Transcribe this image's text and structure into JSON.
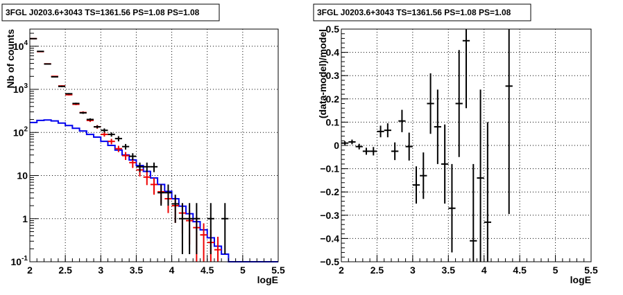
{
  "chart_data": [
    {
      "type": "line",
      "title": "3FGL J0203.6+3043 TS=1361.56 PS=1.08 PS=1.08",
      "xlabel": "logE",
      "ylabel": "Nb of counts",
      "xlim": [
        2,
        5.5
      ],
      "ylim": [
        0.1,
        25000
      ],
      "yscale": "log",
      "grid": true,
      "x_ticks": [
        "2",
        "2.5",
        "3",
        "3.5",
        "4",
        "4.5",
        "5",
        "5.5"
      ],
      "y_ticks": [
        "10^-1",
        "1",
        "10",
        "10^2",
        "10^3",
        "10^4"
      ],
      "colors": {
        "model": "#0000ee",
        "model_points": "#ee0000",
        "data": "#000000"
      },
      "x_bin_edges": [
        2.0,
        2.1,
        2.2,
        2.3,
        2.4,
        2.5,
        2.6,
        2.7,
        2.8,
        2.9,
        3.0,
        3.1,
        3.2,
        3.3,
        3.4,
        3.5,
        3.6,
        3.7,
        3.8,
        3.9,
        4.0,
        4.1,
        4.2,
        4.3,
        4.4,
        4.5,
        4.6,
        4.7,
        4.8,
        5.0,
        5.5
      ],
      "series": [
        {
          "style": "histogram",
          "values": [
            170,
            190,
            195,
            185,
            165,
            145,
            125,
            108,
            90,
            78,
            62,
            50,
            39,
            30,
            23,
            17,
            12.5,
            8.8,
            6.2,
            4.3,
            2.9,
            1.95,
            1.3,
            0.85,
            0.55,
            0.36,
            0.23,
            0.15,
            0.1,
            0.1
          ]
        },
        {
          "style": "points",
          "x": [
            2.05,
            2.15,
            2.25,
            2.35,
            2.45,
            2.55,
            2.65,
            2.75,
            2.85,
            2.95,
            3.05,
            3.15,
            3.25,
            3.35,
            3.45,
            3.55,
            3.65,
            3.75,
            3.85,
            3.95,
            4.05,
            4.15,
            4.25,
            4.35,
            4.45,
            4.55,
            4.65
          ],
          "y": [
            15000,
            7500,
            3900,
            2000,
            1200,
            750,
            450,
            290,
            190,
            135,
            90,
            62,
            42,
            29,
            20,
            13.5,
            9.2,
            6.2,
            4.2,
            2.9,
            2.0,
            1.35,
            0.9,
            0.62,
            0.42,
            0.28,
            0.19
          ],
          "y_low": [
            14800,
            7350,
            3800,
            1950,
            1160,
            720,
            430,
            272,
            175,
            122,
            80,
            53,
            35,
            23,
            15,
            9.5,
            6,
            3.6,
            2.2,
            1.35,
            0.8,
            0.45,
            0.25,
            0.1,
            0.1,
            0.1,
            0.1
          ],
          "y_high": [
            15200,
            7650,
            4000,
            2050,
            1240,
            780,
            470,
            308,
            205,
            148,
            100,
            71,
            49,
            35,
            25,
            17.5,
            12.4,
            8.8,
            6.2,
            4.5,
            3.2,
            2.25,
            1.55,
            1.1,
            0.78,
            0.55,
            0.38
          ]
        },
        {
          "style": "points",
          "x": [
            2.05,
            2.15,
            2.25,
            2.35,
            2.45,
            2.55,
            2.65,
            2.75,
            2.85,
            2.95,
            3.05,
            3.15,
            3.25,
            3.35,
            3.45,
            3.55,
            3.65,
            3.75,
            3.85,
            3.95,
            4.05,
            4.15,
            4.25,
            4.35,
            4.55,
            4.75
          ],
          "y": [
            15000,
            7600,
            3870,
            1950,
            1170,
            790,
            470,
            285,
            200,
            135,
            112,
            90,
            72,
            47,
            28,
            16,
            16,
            16,
            4,
            4,
            2.2,
            1,
            1,
            1,
            1,
            1
          ],
          "y_low": [
            14750,
            7450,
            3800,
            1900,
            1130,
            760,
            450,
            270,
            187,
            125,
            100,
            80,
            62,
            40,
            23,
            12,
            12,
            12,
            2,
            2,
            0.8,
            0.15,
            0.15,
            0.15,
            0.15,
            0.15
          ],
          "y_high": [
            15250,
            7750,
            3940,
            2000,
            1210,
            820,
            490,
            300,
            213,
            145,
            124,
            100,
            82,
            54,
            33,
            20,
            20,
            20,
            6.2,
            6.2,
            3.6,
            2.3,
            2.3,
            2.3,
            2.3,
            2.3
          ]
        }
      ]
    },
    {
      "type": "scatter",
      "title": "3FGL J0203.6+3043 TS=1361.56 PS=1.08 PS=1.08",
      "xlabel": "logE",
      "ylabel": "(data-model)/model",
      "xlim": [
        2,
        5.5
      ],
      "ylim": [
        -0.5,
        0.5
      ],
      "grid": true,
      "x_ticks": [
        "2",
        "2.5",
        "3",
        "3.5",
        "4",
        "4.5",
        "5",
        "5.5"
      ],
      "y_ticks": [
        "−0.5",
        "−0.4",
        "−0.3",
        "−0.2",
        "−0.1",
        "0",
        "0.1",
        "0.2",
        "0.3",
        "0.4",
        "0.5"
      ],
      "colors": {
        "data": "#000000"
      },
      "series": [
        {
          "x": [
            2.05,
            2.15,
            2.25,
            2.35,
            2.45,
            2.55,
            2.65,
            2.75,
            2.85,
            2.95,
            3.05,
            3.15,
            3.25,
            3.35,
            3.45,
            3.55,
            3.65,
            3.75,
            3.85,
            3.95,
            4.05,
            4.35
          ],
          "y": [
            0.01,
            0.015,
            -0.005,
            -0.025,
            -0.025,
            0.06,
            0.065,
            -0.025,
            0.105,
            -0.005,
            -0.17,
            -0.13,
            0.18,
            0.08,
            -0.08,
            -0.27,
            0.18,
            0.45,
            -0.41,
            -0.14,
            -0.33,
            0.255
          ],
          "y_err": [
            0.008,
            0.01,
            0.012,
            0.015,
            0.018,
            0.025,
            0.03,
            0.038,
            0.048,
            0.06,
            0.08,
            0.1,
            0.13,
            0.16,
            0.17,
            0.19,
            0.23,
            0.29,
            0.33,
            0.38,
            0.43,
            0.55
          ]
        }
      ]
    }
  ]
}
